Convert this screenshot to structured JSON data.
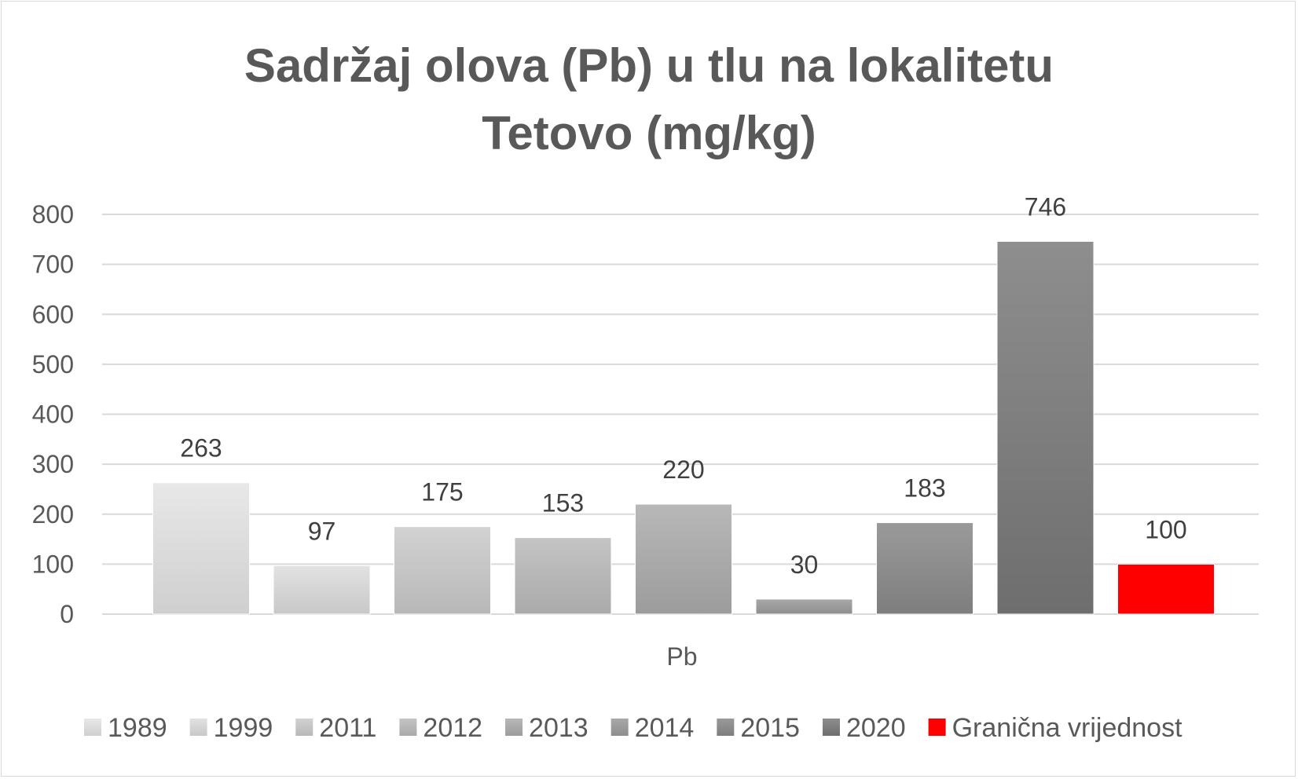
{
  "chart_data": {
    "type": "bar",
    "title_lines": [
      "Sadržaj olova (Pb) u tlu na lokalitetu",
      "Tetovo (mg/kg)"
    ],
    "categories": [
      "Pb"
    ],
    "ylim": [
      0,
      800
    ],
    "yticks": [
      0,
      100,
      200,
      300,
      400,
      500,
      600,
      700,
      800
    ],
    "grid": true,
    "legend_position": "bottom",
    "series": [
      {
        "name": "1989",
        "values": [
          263
        ],
        "color_top": "#e8e8e8",
        "color_bottom": "#cfcfcf"
      },
      {
        "name": "1999",
        "values": [
          97
        ],
        "color_top": "#e2e2e2",
        "color_bottom": "#c8c8c8"
      },
      {
        "name": "2011",
        "values": [
          175
        ],
        "color_top": "#d2d2d2",
        "color_bottom": "#b8b8b8"
      },
      {
        "name": "2012",
        "values": [
          153
        ],
        "color_top": "#c4c4c4",
        "color_bottom": "#aaaaaa"
      },
      {
        "name": "2013",
        "values": [
          220
        ],
        "color_top": "#b8b8b8",
        "color_bottom": "#9c9c9c"
      },
      {
        "name": "2014",
        "values": [
          30
        ],
        "color_top": "#a8a8a8",
        "color_bottom": "#8e8e8e"
      },
      {
        "name": "2015",
        "values": [
          183
        ],
        "color_top": "#9a9a9a",
        "color_bottom": "#7e7e7e"
      },
      {
        "name": "2020",
        "values": [
          746
        ],
        "color_top": "#8e8e8e",
        "color_bottom": "#6e6e6e"
      },
      {
        "name": "Granična vrijednost",
        "values": [
          100
        ],
        "color_top": "#ff0000",
        "color_bottom": "#ff0000"
      }
    ]
  }
}
